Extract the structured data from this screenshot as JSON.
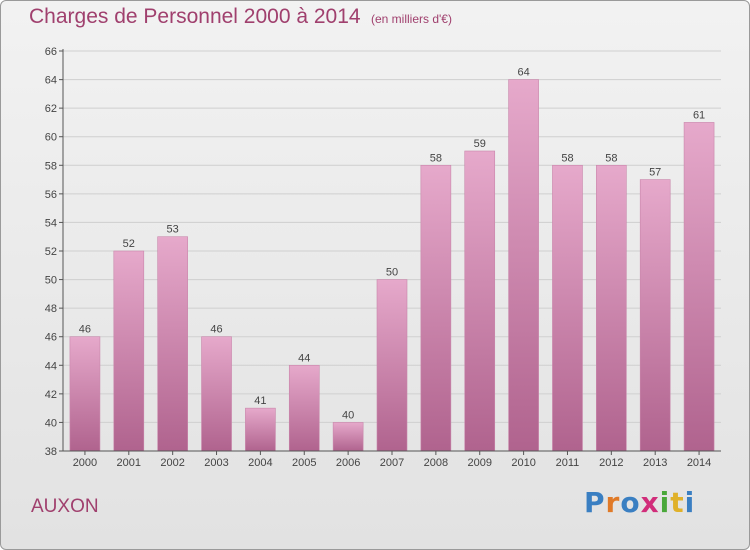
{
  "header": {
    "title": "Charges de Personnel 2000 à 2014",
    "subtitle": "(en milliers d'€)"
  },
  "footer": {
    "commune": "AUXON",
    "logo_letters": [
      "P",
      "r",
      "o",
      "x",
      "i",
      "t",
      "i"
    ]
  },
  "colors": {
    "bar_top": "#e6a9cb",
    "bar_bottom": "#b0638e",
    "title": "#a0406e",
    "axis": "#555555",
    "grid": "#cfcfcf"
  },
  "chart_data": {
    "type": "bar",
    "title": "Charges de Personnel 2000 à 2014",
    "subtitle": "(en milliers d'€)",
    "categories": [
      "2000",
      "2001",
      "2002",
      "2003",
      "2004",
      "2005",
      "2006",
      "2007",
      "2008",
      "2009",
      "2010",
      "2011",
      "2012",
      "2013",
      "2014"
    ],
    "values": [
      46,
      52,
      53,
      46,
      41,
      44,
      40,
      50,
      58,
      59,
      64,
      58,
      58,
      57,
      61
    ],
    "ylim": [
      38,
      66
    ],
    "yticks": [
      38,
      40,
      42,
      44,
      46,
      48,
      50,
      52,
      54,
      56,
      58,
      60,
      62,
      64,
      66
    ],
    "grid": true,
    "legend": "none"
  }
}
